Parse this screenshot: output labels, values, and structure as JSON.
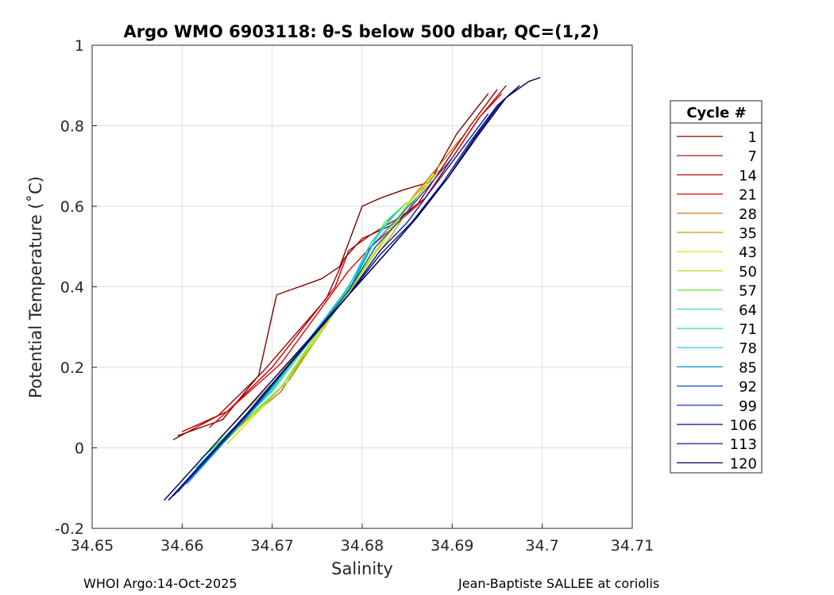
{
  "chart_data": {
    "type": "line",
    "title": "Argo WMO 6903118: θ-S below 500 dbar,  QC=(1,2)",
    "xlabel": "Salinity",
    "ylabel": "Potential Temperature (˚C)",
    "xlim": [
      34.65,
      34.71
    ],
    "ylim": [
      -0.2,
      1.0
    ],
    "x_ticks": [
      34.65,
      34.66,
      34.67,
      34.68,
      34.69,
      34.7,
      34.71
    ],
    "x_tick_labels": [
      "34.65",
      "34.66",
      "34.67",
      "34.68",
      "34.69",
      "34.7",
      "34.71"
    ],
    "y_ticks": [
      -0.2,
      0,
      0.2,
      0.4,
      0.6,
      0.8,
      1.0
    ],
    "y_tick_labels": [
      "-0.2",
      "0",
      "0.2",
      "0.4",
      "0.6",
      "0.8",
      "1"
    ],
    "grid": true,
    "legend_title": "Cycle #",
    "legend_position": "right-outside",
    "series": [
      {
        "name": "1",
        "color": "#800000",
        "x": [
          34.6595,
          34.6645,
          34.6685,
          34.6705,
          34.673,
          34.6755,
          34.6775,
          34.68,
          34.682,
          34.6845,
          34.6875,
          34.6905,
          34.694
        ],
        "y": [
          0.03,
          0.07,
          0.18,
          0.38,
          0.4,
          0.42,
          0.45,
          0.6,
          0.62,
          0.64,
          0.66,
          0.78,
          0.88
        ]
      },
      {
        "name": "7",
        "color": "#9b0000",
        "x": [
          34.659,
          34.664,
          34.669,
          34.676,
          34.678,
          34.68,
          34.683,
          34.686,
          34.689,
          34.692,
          34.695
        ],
        "y": [
          0.02,
          0.08,
          0.19,
          0.37,
          0.47,
          0.52,
          0.55,
          0.6,
          0.7,
          0.8,
          0.89
        ]
      },
      {
        "name": "14",
        "color": "#c00000",
        "x": [
          34.66,
          34.665,
          34.67,
          34.677,
          34.6785,
          34.681,
          34.684,
          34.687,
          34.69,
          34.693,
          34.696
        ],
        "y": [
          0.04,
          0.09,
          0.2,
          0.4,
          0.49,
          0.53,
          0.57,
          0.62,
          0.72,
          0.82,
          0.9
        ]
      },
      {
        "name": "21",
        "color": "#e80000",
        "x": [
          34.663,
          34.667,
          34.671,
          34.6785,
          34.681,
          34.684,
          34.687,
          34.69,
          34.693,
          34.6955
        ],
        "y": [
          0.05,
          0.13,
          0.21,
          0.44,
          0.5,
          0.56,
          0.62,
          0.72,
          0.82,
          0.88
        ]
      },
      {
        "name": "28",
        "color": "#d46a00",
        "x": [
          34.665,
          34.671,
          34.678,
          34.682,
          34.6855,
          34.6885,
          34.691
        ],
        "y": [
          0.03,
          0.14,
          0.38,
          0.5,
          0.62,
          0.7,
          0.77
        ]
      },
      {
        "name": "35",
        "color": "#c7a000",
        "x": [
          34.664,
          34.67,
          34.679,
          34.683,
          34.686,
          34.6885
        ],
        "y": [
          0.02,
          0.16,
          0.4,
          0.52,
          0.62,
          0.69
        ]
      },
      {
        "name": "43",
        "color": "#d8e000",
        "x": [
          34.665,
          34.671,
          34.6795,
          34.6835,
          34.686,
          34.688
        ],
        "y": [
          0.01,
          0.15,
          0.42,
          0.55,
          0.63,
          0.68
        ]
      },
      {
        "name": "50",
        "color": "#a8e020",
        "x": [
          34.664,
          34.672,
          34.68,
          34.683,
          34.6855,
          34.6875
        ],
        "y": [
          0.0,
          0.17,
          0.44,
          0.54,
          0.62,
          0.66
        ]
      },
      {
        "name": "57",
        "color": "#60e040",
        "x": [
          34.663,
          34.671,
          34.679,
          34.6825,
          34.685
        ],
        "y": [
          -0.01,
          0.15,
          0.42,
          0.56,
          0.61
        ]
      },
      {
        "name": "64",
        "color": "#30e070",
        "x": [
          34.662,
          34.67,
          34.679,
          34.682,
          34.6845
        ],
        "y": [
          -0.03,
          0.14,
          0.41,
          0.54,
          0.6
        ]
      },
      {
        "name": "71",
        "color": "#20e0b0",
        "x": [
          34.6615,
          34.6695,
          34.6785,
          34.6815,
          34.684
        ],
        "y": [
          -0.05,
          0.13,
          0.4,
          0.52,
          0.59
        ]
      },
      {
        "name": "78",
        "color": "#18c8e0",
        "x": [
          34.661,
          34.669,
          34.6785,
          34.681,
          34.6835
        ],
        "y": [
          -0.07,
          0.12,
          0.4,
          0.51,
          0.58
        ]
      },
      {
        "name": "85",
        "color": "#0a8cd8",
        "x": [
          34.6605,
          34.6685,
          34.6785,
          34.681,
          34.6835,
          34.686
        ],
        "y": [
          -0.09,
          0.11,
          0.39,
          0.5,
          0.56,
          0.62
        ]
      },
      {
        "name": "92",
        "color": "#0050c8",
        "x": [
          34.6595,
          34.668,
          34.6785,
          34.6815,
          34.684,
          34.687,
          34.69
        ],
        "y": [
          -0.11,
          0.1,
          0.39,
          0.5,
          0.56,
          0.64,
          0.72
        ]
      },
      {
        "name": "99",
        "color": "#0020b0",
        "x": [
          34.659,
          34.6675,
          34.6785,
          34.682,
          34.685,
          34.688,
          34.691,
          34.694
        ],
        "y": [
          -0.12,
          0.09,
          0.38,
          0.49,
          0.56,
          0.65,
          0.74,
          0.83
        ]
      },
      {
        "name": "106",
        "color": "#000a90",
        "x": [
          34.6585,
          34.667,
          34.6785,
          34.682,
          34.6855,
          34.689,
          34.692,
          34.695,
          34.697
        ],
        "y": [
          -0.13,
          0.08,
          0.38,
          0.48,
          0.56,
          0.66,
          0.76,
          0.85,
          0.89
        ]
      },
      {
        "name": "113",
        "color": "#000070",
        "x": [
          34.6585,
          34.667,
          34.6785,
          34.6825,
          34.686,
          34.6895,
          34.6925,
          34.6955,
          34.6975
        ],
        "y": [
          -0.13,
          0.08,
          0.38,
          0.48,
          0.57,
          0.67,
          0.77,
          0.86,
          0.9
        ]
      },
      {
        "name": "120",
        "color": "#00005a",
        "x": [
          34.658,
          34.6665,
          34.6785,
          34.6825,
          34.686,
          34.6895,
          34.693,
          34.696,
          34.6985,
          34.6998
        ],
        "y": [
          -0.13,
          0.08,
          0.38,
          0.48,
          0.57,
          0.67,
          0.78,
          0.87,
          0.91,
          0.92
        ]
      }
    ]
  },
  "footer": {
    "left": "WHOI Argo:14-Oct-2025",
    "right": "Jean-Baptiste SALLEE at coriolis"
  }
}
